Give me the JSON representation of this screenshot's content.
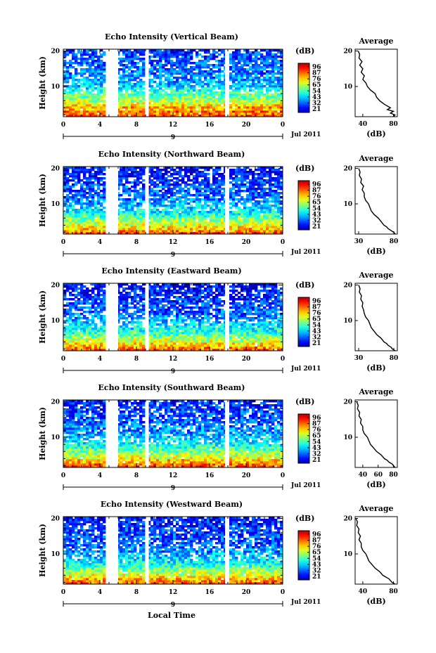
{
  "figure": {
    "xlabel": "Local Time",
    "date_label": "Jul 2011",
    "day_marker": "9",
    "colorbar_label": "(dB)",
    "avg_title": "Average",
    "avg_xlabel": "(dB)",
    "ylabel": "Height (km)"
  },
  "chart_data": [
    {
      "type": "heatmap",
      "title": "Echo Intensity (Vertical Beam)",
      "x_ticks": [
        "0",
        "4",
        "8",
        "12",
        "16",
        "20",
        "0"
      ],
      "y_ticks": [
        "20",
        "10"
      ],
      "xlim": [
        0,
        24
      ],
      "ylim": [
        1.5,
        20.5
      ],
      "colorbar_ticks": [
        "96",
        "87",
        "76",
        "65",
        "54",
        "43",
        "32",
        "21"
      ],
      "data_gaps_hours": [
        [
          4.7,
          6.0
        ],
        [
          9.0,
          9.35
        ],
        [
          17.7,
          18.0
        ]
      ],
      "avg_profile": {
        "x_ticks": [
          "40",
          "80"
        ],
        "xlim": [
          30,
          85
        ],
        "height": [
          1.5,
          2,
          2.5,
          3,
          3.5,
          4,
          5,
          6,
          7,
          8,
          9,
          10,
          11,
          12,
          13,
          14,
          15,
          16,
          17,
          18,
          19,
          20
        ],
        "db": [
          80,
          82,
          76,
          80,
          72,
          76,
          68,
          62,
          58,
          56,
          50,
          46,
          44,
          40,
          42,
          38,
          40,
          36,
          39,
          35,
          36,
          34
        ]
      }
    },
    {
      "type": "heatmap",
      "title": "Echo Intensity (Northward Beam)",
      "x_ticks": [
        "0",
        "4",
        "8",
        "12",
        "16",
        "20",
        "0"
      ],
      "y_ticks": [
        "20",
        "10"
      ],
      "xlim": [
        0,
        24
      ],
      "ylim": [
        1.5,
        20.5
      ],
      "colorbar_ticks": [
        "96",
        "87",
        "76",
        "65",
        "54",
        "43",
        "32",
        "21"
      ],
      "data_gaps_hours": [
        [
          4.7,
          6.0
        ],
        [
          9.0,
          9.35
        ],
        [
          17.7,
          18.0
        ]
      ],
      "avg_profile": {
        "x_ticks": [
          "30",
          "80"
        ],
        "xlim": [
          25,
          85
        ],
        "height": [
          1.5,
          2,
          2.5,
          3,
          3.5,
          4,
          5,
          6,
          7,
          8,
          9,
          10,
          11,
          12,
          13,
          14,
          15,
          16,
          17,
          18,
          19,
          20
        ],
        "db": [
          82,
          80,
          76,
          72,
          70,
          66,
          62,
          58,
          52,
          48,
          46,
          44,
          40,
          38,
          38,
          35,
          37,
          33,
          34,
          31,
          32,
          30
        ]
      }
    },
    {
      "type": "heatmap",
      "title": "Echo Intensity (Eastward Beam)",
      "x_ticks": [
        "0",
        "4",
        "8",
        "12",
        "16",
        "20",
        "0"
      ],
      "y_ticks": [
        "20",
        "10"
      ],
      "xlim": [
        0,
        24
      ],
      "ylim": [
        1.5,
        20.5
      ],
      "colorbar_ticks": [
        "96",
        "87",
        "76",
        "65",
        "54",
        "43",
        "32",
        "21"
      ],
      "data_gaps_hours": [
        [
          4.7,
          6.0
        ],
        [
          9.0,
          9.35
        ],
        [
          17.7,
          18.0
        ]
      ],
      "avg_profile": {
        "x_ticks": [
          "30",
          "80"
        ],
        "xlim": [
          25,
          85
        ],
        "height": [
          1.5,
          2,
          2.5,
          3,
          3.5,
          4,
          5,
          6,
          7,
          8,
          9,
          10,
          11,
          12,
          13,
          14,
          15,
          16,
          17,
          18,
          19,
          20
        ],
        "db": [
          82,
          78,
          76,
          72,
          70,
          66,
          62,
          56,
          52,
          48,
          46,
          44,
          40,
          38,
          37,
          35,
          36,
          33,
          34,
          31,
          32,
          30
        ]
      }
    },
    {
      "type": "heatmap",
      "title": "Echo Intensity (Southward Beam)",
      "x_ticks": [
        "0",
        "4",
        "8",
        "12",
        "16",
        "20",
        "0"
      ],
      "y_ticks": [
        "20",
        "10"
      ],
      "xlim": [
        0,
        24
      ],
      "ylim": [
        1.5,
        20.5
      ],
      "colorbar_ticks": [
        "96",
        "87",
        "76",
        "65",
        "54",
        "43",
        "32",
        "21"
      ],
      "data_gaps_hours": [
        [
          4.7,
          6.0
        ],
        [
          9.0,
          9.35
        ],
        [
          17.7,
          18.0
        ]
      ],
      "avg_profile": {
        "x_ticks": [
          "40",
          "60",
          "80"
        ],
        "xlim": [
          30,
          85
        ],
        "height": [
          1.5,
          2,
          2.5,
          3,
          3.5,
          4,
          5,
          6,
          7,
          8,
          9,
          10,
          11,
          12,
          13,
          14,
          15,
          16,
          17,
          18,
          19,
          20
        ],
        "db": [
          82,
          80,
          78,
          74,
          72,
          68,
          64,
          58,
          54,
          50,
          48,
          46,
          42,
          40,
          40,
          37,
          38,
          35,
          36,
          33,
          34,
          32
        ]
      }
    },
    {
      "type": "heatmap",
      "title": "Echo Intensity (Westward Beam)",
      "x_ticks": [
        "0",
        "4",
        "8",
        "12",
        "16",
        "20",
        "0"
      ],
      "y_ticks": [
        "20",
        "10"
      ],
      "xlim": [
        0,
        24
      ],
      "ylim": [
        1.5,
        20.5
      ],
      "colorbar_ticks": [
        "96",
        "87",
        "76",
        "65",
        "54",
        "43",
        "32",
        "21"
      ],
      "data_gaps_hours": [
        [
          4.7,
          6.0
        ],
        [
          9.0,
          9.35
        ],
        [
          17.7,
          18.0
        ]
      ],
      "avg_profile": {
        "x_ticks": [
          "40",
          "80"
        ],
        "xlim": [
          30,
          85
        ],
        "height": [
          1.5,
          2,
          2.5,
          3,
          3.5,
          4,
          5,
          6,
          7,
          8,
          9,
          10,
          11,
          12,
          13,
          14,
          15,
          16,
          17,
          18,
          19,
          20
        ],
        "db": [
          82,
          78,
          76,
          74,
          70,
          66,
          62,
          56,
          52,
          48,
          46,
          44,
          40,
          38,
          38,
          35,
          37,
          34,
          35,
          32,
          33,
          31
        ]
      }
    }
  ]
}
